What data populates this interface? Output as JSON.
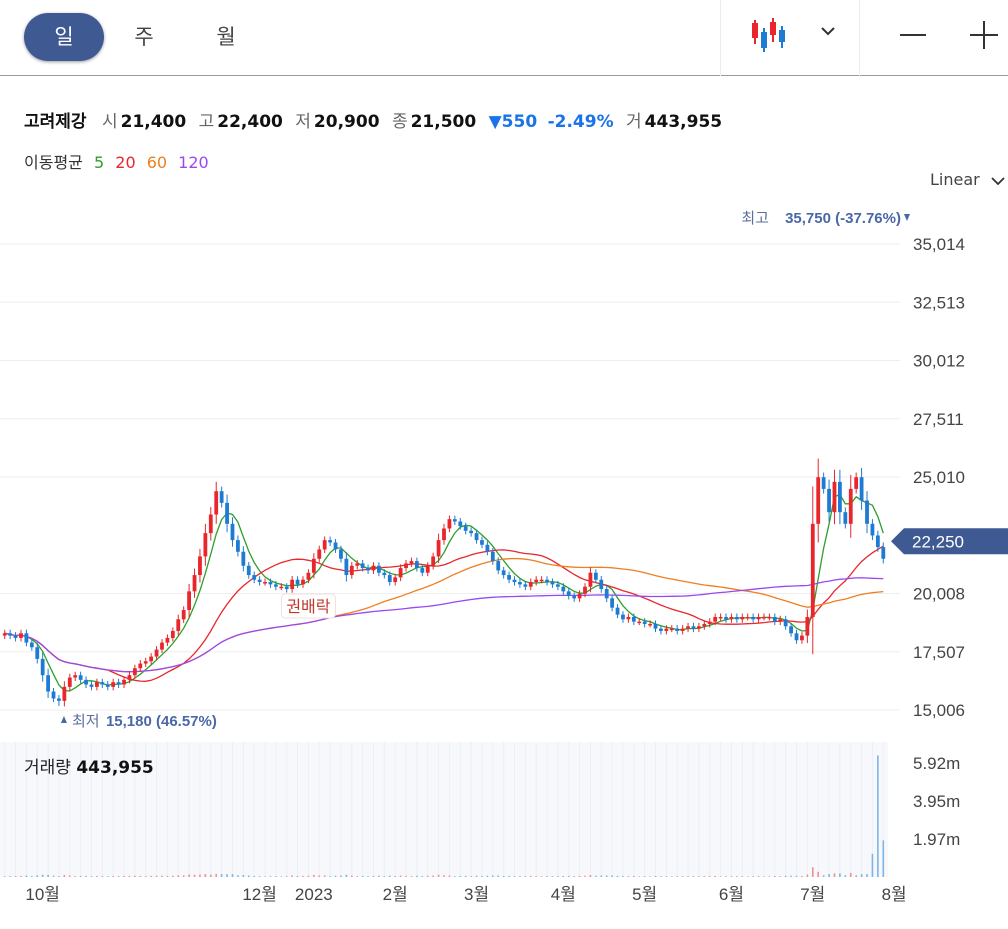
{
  "toolbar": {
    "periods": [
      "일",
      "주",
      "월"
    ],
    "active_period": "일",
    "chart_type_icon": "candlestick-icon",
    "dropdown_icon": "chevron-down-icon",
    "zoom_out_icon": "minus-icon",
    "zoom_in_icon": "plus-icon"
  },
  "stock": {
    "name": "고려제강",
    "open_label": "시",
    "open": "21,400",
    "high_label": "고",
    "high": "22,400",
    "low_label": "저",
    "low": "20,900",
    "close_label": "종",
    "close": "21,500",
    "change": "550",
    "change_pct": "-2.49%",
    "volume_label": "거",
    "volume": "443,955"
  },
  "moving_averages": {
    "label": "이동평균",
    "periods": [
      "5",
      "20",
      "60",
      "120"
    ],
    "colors": [
      "#2ba02b",
      "#e8262b",
      "#f07e1f",
      "#9a48f0"
    ]
  },
  "scale_mode": "Linear",
  "colors": {
    "up": "#e8262b",
    "down": "#1d7bd3",
    "accent": "#3f5a92",
    "grid": "#eeeeee"
  },
  "chart_data": {
    "type": "candlestick",
    "y_ticks": [
      "35,014",
      "32,513",
      "30,012",
      "27,511",
      "25,010",
      "20,008",
      "17,507",
      "15,006"
    ],
    "y_tick_values": [
      35014,
      32513,
      30012,
      27511,
      25010,
      20008,
      17507,
      15006
    ],
    "ylim": [
      14500,
      36500
    ],
    "x_ticks": [
      "10월",
      "12월",
      "2023",
      "2월",
      "3월",
      "4월",
      "5월",
      "6월",
      "7월",
      "8월"
    ],
    "x_tick_index": [
      7,
      47,
      57,
      72,
      87,
      103,
      118,
      134,
      149,
      164
    ],
    "current_price_label": "22,250",
    "current_price": 22250,
    "high_annotation": {
      "label": "최고",
      "value": "35,750 (-37.76%)",
      "index": 166,
      "price": 35750
    },
    "low_annotation": {
      "label": "최저",
      "value": "15,180 (46.57%)",
      "index": 10,
      "price": 15180
    },
    "event_annotation": {
      "label": "권배락",
      "index": 56
    },
    "volume": {
      "label": "거래량",
      "value": "443,955",
      "ticks": [
        "5.92m",
        "3.95m",
        "1.97m"
      ],
      "tick_values": [
        5920000,
        3950000,
        1970000
      ],
      "max": 7000000
    },
    "closes": [
      18300,
      18200,
      18100,
      18300,
      17900,
      17700,
      17200,
      16500,
      15800,
      15500,
      15400,
      16000,
      16400,
      16500,
      16300,
      16100,
      16000,
      16200,
      16100,
      16000,
      16200,
      16100,
      16300,
      16500,
      16800,
      17000,
      17100,
      17300,
      17600,
      17900,
      18100,
      18400,
      18900,
      19300,
      20100,
      20800,
      21600,
      22600,
      23400,
      24400,
      23900,
      23000,
      22300,
      21800,
      21200,
      20800,
      20600,
      20500,
      20500,
      20400,
      20300,
      20300,
      20200,
      20600,
      20400,
      20600,
      20900,
      21500,
      21900,
      22300,
      22200,
      21900,
      21500,
      20800,
      21200,
      21300,
      21100,
      21000,
      21200,
      20900,
      20800,
      20500,
      20700,
      21100,
      21300,
      21400,
      21100,
      20900,
      21200,
      21600,
      22300,
      22800,
      23200,
      23100,
      22900,
      22700,
      22600,
      22300,
      22100,
      21800,
      21400,
      21000,
      20800,
      20600,
      20500,
      20400,
      20300,
      20500,
      20600,
      20600,
      20500,
      20400,
      20300,
      20100,
      19900,
      19800,
      20000,
      20300,
      20900,
      20600,
      20200,
      19800,
      19400,
      19100,
      18900,
      19000,
      18800,
      18800,
      18700,
      18700,
      18500,
      18400,
      18500,
      18500,
      18400,
      18500,
      18600,
      18500,
      18600,
      18700,
      18800,
      19000,
      19000,
      18900,
      19000,
      18900,
      19000,
      19000,
      18900,
      19000,
      19000,
      19000,
      18800,
      18900,
      18600,
      18300,
      18000,
      18200,
      19000,
      23000,
      25000,
      24500,
      23500,
      24800,
      23500,
      23000,
      24500,
      25000,
      24000,
      23000,
      22500,
      22000,
      21500
    ],
    "opens": [
      18200,
      18300,
      18200,
      18100,
      18300,
      17900,
      17700,
      17200,
      16500,
      15800,
      15500,
      15400,
      16000,
      16400,
      16500,
      16300,
      16100,
      16000,
      16200,
      16100,
      16000,
      16200,
      16100,
      16300,
      16500,
      16800,
      17000,
      17100,
      17300,
      17600,
      17900,
      18100,
      18400,
      18900,
      19300,
      20100,
      20800,
      21600,
      22600,
      23400,
      24400,
      23900,
      23000,
      22300,
      21800,
      21200,
      20800,
      20600,
      20500,
      20500,
      20400,
      20300,
      20300,
      20200,
      20600,
      20400,
      20600,
      20900,
      21500,
      21900,
      22300,
      22200,
      21900,
      21500,
      20800,
      21200,
      21300,
      21100,
      21000,
      21200,
      20900,
      20800,
      20500,
      20700,
      21100,
      21300,
      21400,
      21100,
      20900,
      21200,
      21600,
      22300,
      22800,
      23200,
      23100,
      22900,
      22700,
      22600,
      22300,
      22100,
      21800,
      21400,
      21000,
      20800,
      20600,
      20500,
      20400,
      20300,
      20500,
      20600,
      20600,
      20500,
      20400,
      20300,
      20100,
      19900,
      19800,
      20000,
      20300,
      20900,
      20600,
      20200,
      19800,
      19400,
      19100,
      18900,
      19000,
      18800,
      18800,
      18700,
      18700,
      18500,
      18400,
      18500,
      18500,
      18400,
      18500,
      18600,
      18500,
      18600,
      18700,
      18800,
      19000,
      19000,
      18900,
      19000,
      18900,
      19000,
      19000,
      18900,
      19000,
      19000,
      19000,
      18800,
      18900,
      18600,
      18300,
      18000,
      18200,
      19000,
      23000,
      25000,
      24500,
      23500,
      24800,
      23500,
      23000,
      24500,
      25000,
      24000,
      23000,
      22500,
      22000
    ]
  }
}
